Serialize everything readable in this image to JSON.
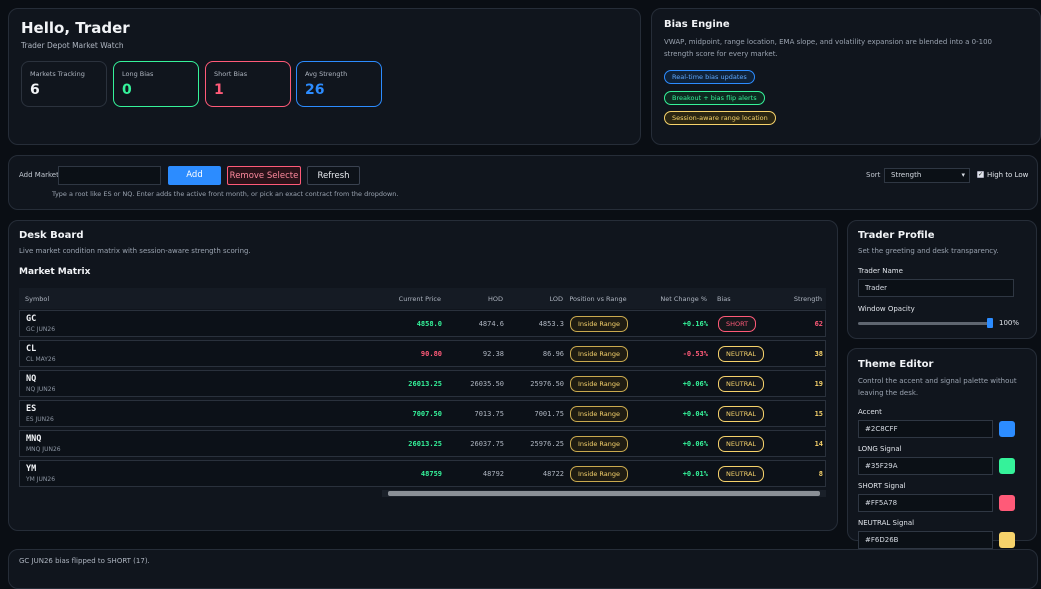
{
  "header": {
    "title": "Hello, Trader",
    "subtitle": "Trader Depot Market Watch",
    "stats": [
      {
        "label": "Markets Tracking",
        "value": 6
      },
      {
        "label": "Long Bias",
        "value": 0
      },
      {
        "label": "Short Bias",
        "value": 1
      },
      {
        "label": "Avg Strength",
        "value": 26
      }
    ]
  },
  "bias_engine": {
    "title": "Bias Engine",
    "description": "VWAP, midpoint, range location, EMA slope, and volatility expansion are blended into a 0-100 strength score for every market.",
    "tags": [
      "Real-time bias updates",
      "Breakout + bias flip alerts",
      "Session-aware range location"
    ]
  },
  "controls": {
    "add_label": "Add Market",
    "add_button": "Add",
    "remove_button": "Remove Selecte",
    "refresh_button": "Refresh",
    "hint": "Type a root like ES or NQ. Enter adds the active front month, or pick an exact contract from the dropdown.",
    "sort_label": "Sort",
    "sort_value": "Strength",
    "order_label": "High to Low"
  },
  "desk": {
    "title": "Desk Board",
    "subtitle": "Live market condition matrix with session-aware strength scoring.",
    "matrix_title": "Market Matrix",
    "columns": [
      "Symbol",
      "Current Price",
      "HOD",
      "LOD",
      "Position vs Range",
      "Net Change %",
      "Bias",
      "Strength"
    ],
    "rows": [
      {
        "symbol": "GC",
        "contract": "GC JUN26",
        "price": "4858.0",
        "hod": "4874.6",
        "lod": "4853.3",
        "position": "Inside Range",
        "change": "+0.16%",
        "bias": "SHORT",
        "strength": 62
      },
      {
        "symbol": "CL",
        "contract": "CL MAY26",
        "price": "90.80",
        "hod": "92.38",
        "lod": "86.96",
        "position": "Inside Range",
        "change": "-0.53%",
        "bias": "NEUTRAL",
        "strength": 38
      },
      {
        "symbol": "NQ",
        "contract": "NQ JUN26",
        "price": "26013.25",
        "hod": "26035.50",
        "lod": "25976.50",
        "position": "Inside Range",
        "change": "+0.06%",
        "bias": "NEUTRAL",
        "strength": 19
      },
      {
        "symbol": "ES",
        "contract": "ES JUN26",
        "price": "7007.50",
        "hod": "7013.75",
        "lod": "7001.75",
        "position": "Inside Range",
        "change": "+0.04%",
        "bias": "NEUTRAL",
        "strength": 15
      },
      {
        "symbol": "MNQ",
        "contract": "MNQ JUN26",
        "price": "26013.25",
        "hod": "26037.75",
        "lod": "25976.25",
        "position": "Inside Range",
        "change": "+0.06%",
        "bias": "NEUTRAL",
        "strength": 14
      },
      {
        "symbol": "YM",
        "contract": "YM JUN26",
        "price": "48759",
        "hod": "48792",
        "lod": "48722",
        "position": "Inside Range",
        "change": "+0.01%",
        "bias": "NEUTRAL",
        "strength": 8
      }
    ]
  },
  "profile": {
    "title": "Trader Profile",
    "subtitle": "Set the greeting and desk transparency.",
    "name_label": "Trader Name",
    "name_value": "Trader",
    "opacity_label": "Window Opacity",
    "opacity_value": "100%"
  },
  "theme": {
    "title": "Theme Editor",
    "subtitle": "Control the accent and signal palette without leaving the desk.",
    "fields": [
      {
        "label": "Accent",
        "value": "#2C8CFF"
      },
      {
        "label": "LONG Signal",
        "value": "#35F29A"
      },
      {
        "label": "SHORT Signal",
        "value": "#FF5A78"
      },
      {
        "label": "NEUTRAL Signal",
        "value": "#F6D26B"
      }
    ]
  },
  "status": "GC JUN26 bias flipped to SHORT (17)."
}
